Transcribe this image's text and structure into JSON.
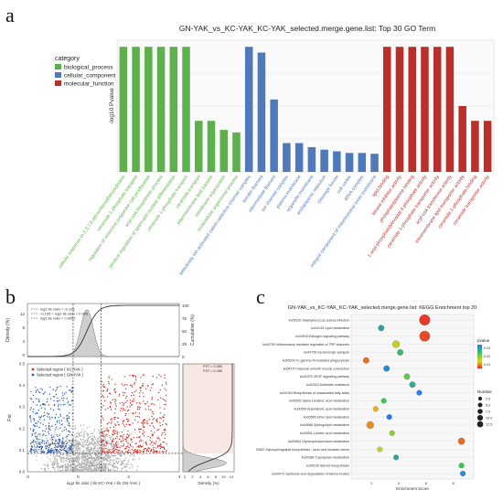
{
  "panel_letters": {
    "a": "a",
    "b": "b",
    "c": "c"
  },
  "chart_data": [
    {
      "panel": "a",
      "type": "bar",
      "title": "GN-YAK_vs_KC-YAK_KC-YAK_selected.merge.gene.list: Top 30 GO Term",
      "ylabel": "-log10 Pvalue",
      "legend": {
        "title": "category",
        "placement": "top-left",
        "entries": [
          {
            "name": "biological_process",
            "color": "#5db04c"
          },
          {
            "name": "cellular_component",
            "color": "#4f79b8"
          },
          {
            "name": "molecular_function",
            "color": "#b8302a"
          }
        ]
      },
      "ylim": [
        0,
        16
      ],
      "categories": [
        "cellular response to 2,3,7,8-tetrachlorodibenzodioxine",
        "ceramide 1-phosphate transport",
        "regulation of amacrine progenitor cell proliferation",
        "acyl-coA biosynthetic process",
        "positive regulation of spermatid nuclear differentiation",
        "ceramide 1-phosphate transport",
        "ceramide transport",
        "intermembrane lipid transfer",
        "membrane organization",
        "multicellular organismal process",
        "selectively ion-activated cation-selective channel complex",
        "keratin filament",
        "intermediate filament",
        "ion channel complex",
        "plasma membrane",
        "organelle membrane",
        "endoplasmic reticulum",
        "cleavage furrow",
        "cell cortex",
        "tRNA complex",
        "integral component of mitochondrial inner membrane",
        "lipid binding",
        "kinase inhibitor activity",
        "phosphatidylserine binding",
        "1-acyl-phosphatidylinositol 4-phosphate activity",
        "ceramide 1-phosphate transporter activity",
        "acyl-coA transferase activity",
        "intramembrane lipid transporter activity",
        "ceramide 1-phosphate binding",
        "ceramide transporter activity"
      ],
      "values": [
        15.2,
        15.2,
        15.2,
        15.2,
        15.2,
        15.2,
        6.2,
        6.2,
        5.1,
        4.8,
        15.2,
        14.5,
        8.8,
        3.5,
        3.5,
        3.0,
        2.7,
        2.5,
        2.3,
        2.3,
        2.2,
        15.2,
        15.2,
        15.2,
        15.2,
        15.2,
        15.2,
        8.0,
        6.2,
        6.2
      ],
      "category_of_bar": [
        "biological_process",
        "biological_process",
        "biological_process",
        "biological_process",
        "biological_process",
        "biological_process",
        "biological_process",
        "biological_process",
        "biological_process",
        "biological_process",
        "cellular_component",
        "cellular_component",
        "cellular_component",
        "cellular_component",
        "cellular_component",
        "cellular_component",
        "cellular_component",
        "cellular_component",
        "cellular_component",
        "cellular_component",
        "cellular_component",
        "molecular_function",
        "molecular_function",
        "molecular_function",
        "molecular_function",
        "molecular_function",
        "molecular_function",
        "molecular_function",
        "molecular_function",
        "molecular_function"
      ],
      "grid": true
    },
    {
      "panel": "b",
      "type": "scatter",
      "title": "",
      "xlabel": "log2 θs ratio ( θs KC-YAK / θs GN-YAK )",
      "ylabel": "Fst",
      "xlim": [
        -2,
        4
      ],
      "ylim": [
        0,
        0.5
      ],
      "top_axis_label": "Density (%)",
      "right_axis_label": "Cumulative (%)",
      "right_xlabel": "Density (%)",
      "legend": {
        "placement": "top-left",
        "entries": [
          {
            "name": "log2 θs ratio = -0.195",
            "style": "dashed"
          },
          {
            "name": "-0.195 < log2 θs ratio < 0.905",
            "style": "dashed"
          },
          {
            "name": "log2 θs ratio = 0.9052",
            "style": "dashed"
          }
        ]
      },
      "selection_legend": [
        {
          "name": "Selected region ( KC-YAK )",
          "color": "#d93025"
        },
        {
          "name": "Selected region ( GN-YAK )",
          "color": "#2b5aa6"
        }
      ],
      "right_legend": [
        {
          "name": "FST = 0.085"
        },
        {
          "name": "FST = 0.085"
        }
      ],
      "thresholds": {
        "x_left": -0.195,
        "x_right": 0.905,
        "fst": 0.085
      },
      "top_ticks": [
        "0",
        "4",
        "8",
        "12"
      ],
      "cum_ticks": [
        "100",
        "75",
        "50",
        "25",
        "0"
      ],
      "y_ticks": [
        "0.0",
        "0.1",
        "0.2",
        "0.3",
        "0.4",
        "0.5"
      ],
      "x_ticks": [
        "-2",
        "0",
        "2",
        "4"
      ],
      "right_ticks": [
        "0",
        "2",
        "4",
        "6",
        "8",
        "10",
        "14"
      ],
      "clusters": [
        {
          "name": "Selected region ( GN-YAK )",
          "x": [
            -1.9,
            -0.2
          ],
          "y": [
            0.09,
            0.4
          ],
          "n": 380,
          "color": "#2b5aa6"
        },
        {
          "name": "Selected region ( KC-YAK )",
          "x": [
            0.9,
            3.5
          ],
          "y": [
            0.09,
            0.45
          ],
          "n": 520,
          "color": "#d93025"
        },
        {
          "name": "Background",
          "x": [
            -1.8,
            3.2
          ],
          "y": [
            0.0,
            0.3
          ],
          "n": 1400,
          "color": "#b0b0b0"
        }
      ]
    },
    {
      "panel": "c",
      "type": "scatter",
      "title": "GN-YAK_vs_KC-YAK_KC-YAK_selected.merge.gene.list: KEGG Enrichment top 20",
      "xlabel": "Enrichment Score",
      "legend_title_color": "pvalue",
      "legend_title_size": "Number",
      "color_ticks": [
        "0.03",
        "0.02",
        "0.01"
      ],
      "size_ticks": [
        "2.5",
        "5.0",
        "7.5",
        "10.0",
        "12.5"
      ],
      "x_ticks": [
        "2",
        "4",
        "6",
        "8"
      ],
      "categories": [
        "ko05130 Staphylococcus aureus infection",
        "ko04130 Lipid metabolism",
        "ko04915 Estrogen signaling pathway",
        "ko04750 Inflammatory mediator regulation of TRP channels",
        "ko04726 Serotonergic synapse",
        "ko05200 Fc gamma R-mediated phagocytosis",
        "ko04270 Vascular smooth muscle contraction",
        "ko04370 VEGF signaling pathway",
        "ko01523 Antifolate resistance",
        "ko01040 Biosynthesis of unsaturated fatty acids",
        "ko00592 alpha-Linolenic acid metabolism",
        "ko00590 Arachidonic acid metabolism",
        "ko00565 Ether lipid metabolism",
        "ko04666 Sphingolipid metabolism",
        "ko00591 Linoleic acid metabolism",
        "ko00564 Glycerophospholipid metabolism",
        "ko00562 Glycosphingolipid biosynthesis - lacto and neolacto series",
        "ko00380 Tryptophan metabolism",
        "ko00100 Steroid biosynthesis",
        "ko00072 Synthesis and degradation of ketone bodies"
      ],
      "x": [
        5.9,
        2.7,
        5.9,
        3.8,
        4.1,
        1.6,
        3.1,
        4.6,
        5.0,
        5.5,
        2.9,
        2.3,
        3.3,
        1.9,
        3.5,
        8.6,
        2.6,
        3.8,
        8.6,
        8.7
      ],
      "number": [
        13,
        3,
        12,
        5,
        3,
        3,
        3,
        3,
        3,
        2,
        2,
        2,
        2,
        5,
        2,
        4,
        2,
        2,
        2,
        2
      ],
      "pvalue": [
        0.001,
        0.025,
        0.002,
        0.012,
        0.022,
        0.004,
        0.028,
        0.018,
        0.024,
        0.03,
        0.02,
        0.008,
        0.03,
        0.006,
        0.015,
        0.004,
        0.012,
        0.025,
        0.02,
        0.028
      ],
      "xlim": [
        0.5,
        9.5
      ]
    }
  ]
}
